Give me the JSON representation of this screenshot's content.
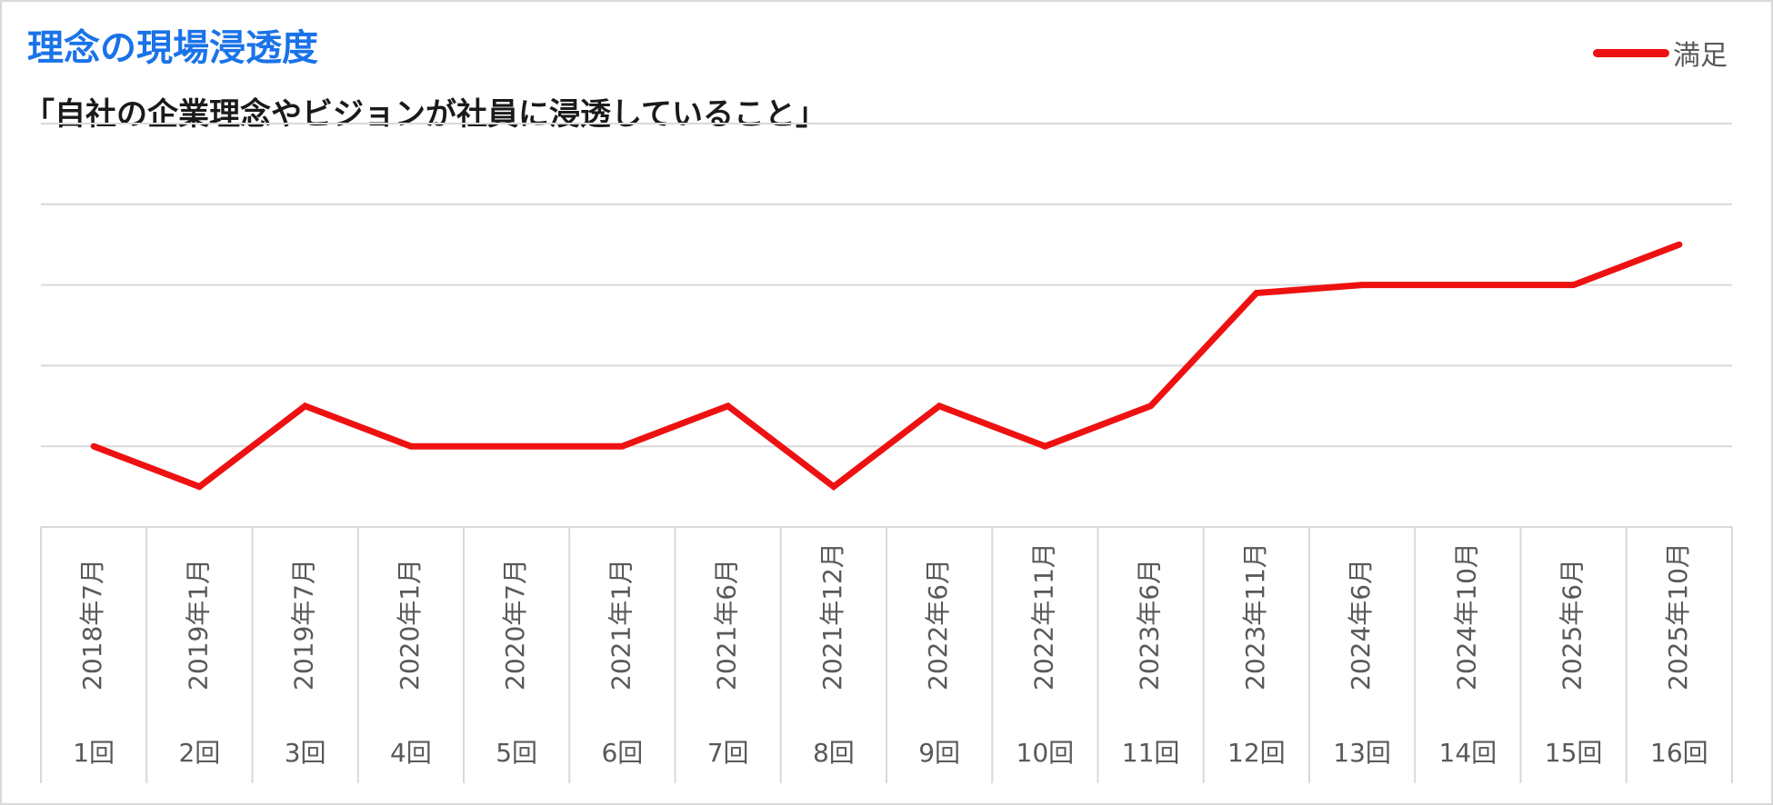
{
  "title": "理念の現場浸透度",
  "subtitle": "「自社の企業理念やビジョンが社員に浸透していること」",
  "colors": {
    "title": "#1a73e8",
    "series": "#ee1111",
    "grid": "#d9d9d9"
  },
  "chart_data": {
    "type": "line",
    "legend_position": "top-right",
    "grid": true,
    "y_axis_labels_shown": false,
    "categories": [
      "1回",
      "2回",
      "3回",
      "4回",
      "5回",
      "6回",
      "7回",
      "8回",
      "9回",
      "10回",
      "11回",
      "12回",
      "13回",
      "14回",
      "15回",
      "16回"
    ],
    "dates": [
      "2018年7月",
      "2019年1月",
      "2019年7月",
      "2020年1月",
      "2020年7月",
      "2021年1月",
      "2021年6月",
      "2021年12月",
      "2022年6月",
      "2022年11月",
      "2023年6月",
      "2023年11月",
      "2024年6月",
      "2024年10月",
      "2025年6月",
      "2025年10月"
    ],
    "series": [
      {
        "name": "満足",
        "color": "#ee1111",
        "values": [
          1.0,
          0.5,
          1.5,
          1.0,
          1.0,
          1.0,
          1.5,
          0.5,
          1.5,
          1.0,
          1.5,
          2.9,
          3.0,
          3.0,
          3.0,
          3.5
        ]
      }
    ],
    "ylim": [
      0,
      5
    ],
    "gridlines": [
      0,
      1,
      2,
      3,
      4,
      5
    ]
  }
}
